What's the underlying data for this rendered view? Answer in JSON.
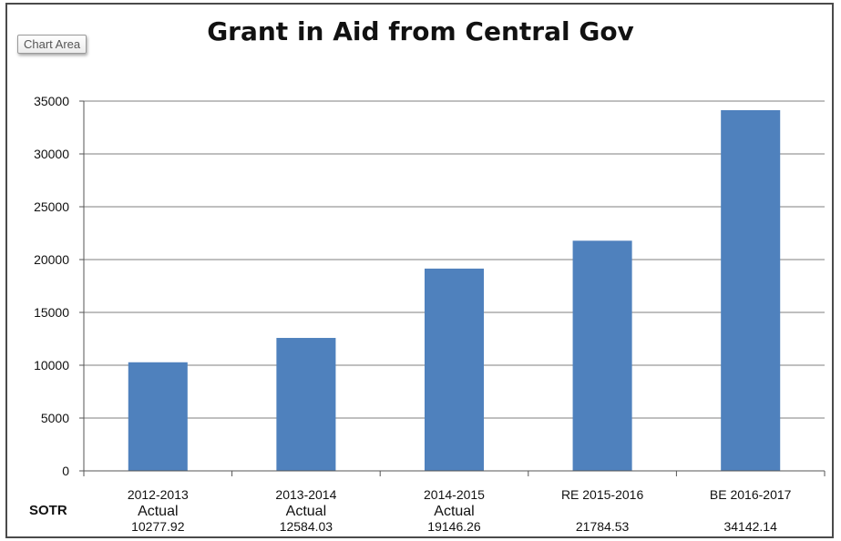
{
  "chart_area_label": "Chart Area",
  "chart_data": {
    "type": "bar",
    "title": "Grant in Aid from Central Gov",
    "categories": [
      "2012-2013",
      "2013-2014",
      "2014-2015",
      "RE 2015-2016",
      "BE 2016-2017"
    ],
    "category_sublabels": [
      "Actual",
      "Actual",
      "Actual",
      "",
      ""
    ],
    "row_label": "SOTR",
    "value_labels": [
      "10277.92",
      "12584.03",
      "19146.26",
      "21784.53",
      "34142.14"
    ],
    "values": [
      10277.92,
      12584.03,
      19146.26,
      21784.53,
      34142.14
    ],
    "ylim": [
      0,
      35000
    ],
    "yticks": [
      0,
      5000,
      10000,
      15000,
      20000,
      25000,
      30000,
      35000
    ],
    "grid": true,
    "bar_color": "#4f81bd",
    "grid_color": "#7f7f7f"
  }
}
